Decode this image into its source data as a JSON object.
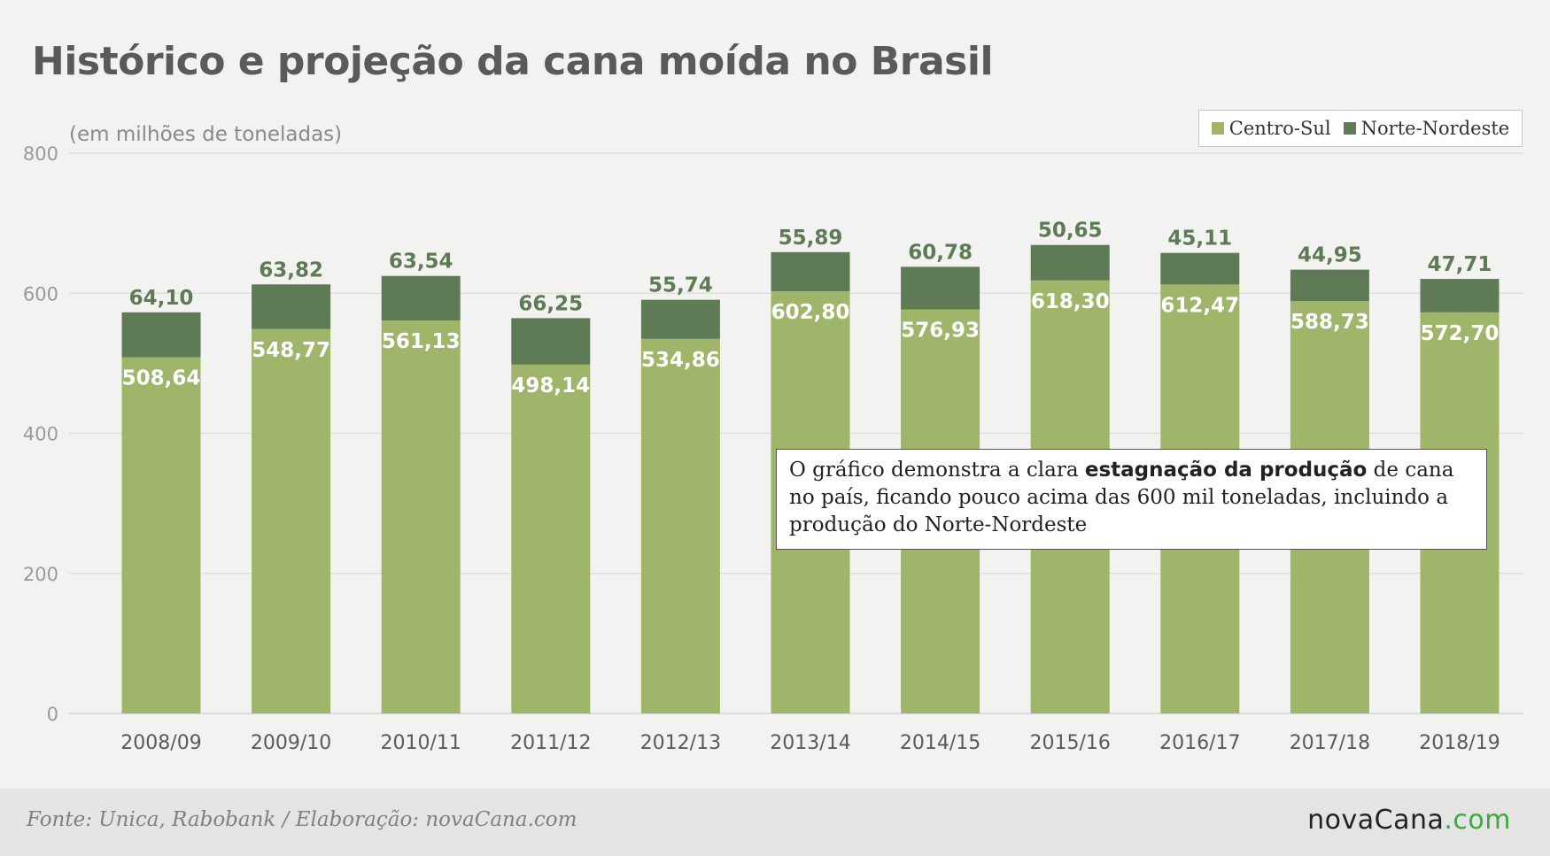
{
  "header": {
    "title": "Histórico e projeção da cana moída no Brasil",
    "subtitle": "(em milhões de toneladas)"
  },
  "legend": {
    "items": [
      {
        "label": "Centro-Sul",
        "color": "#9fb56a"
      },
      {
        "label": "Norte-Nordeste",
        "color": "#5e7b56"
      }
    ]
  },
  "callout": {
    "text_before": "O gráfico demonstra a clara ",
    "text_bold": "estagnação da produção",
    "text_after": " de cana no país, ficando pouco acima das 600 mil toneladas, incluindo a produção do Norte-Nordeste"
  },
  "footer": {
    "source": "Fonte: Unica, Rabobank / Elaboração: novaCana.com",
    "brand_main": "novaCana",
    "brand_suffix": ".com"
  },
  "chart_data": {
    "type": "bar",
    "stacked": true,
    "categories": [
      "2008/09",
      "2009/10",
      "2010/11",
      "2011/12",
      "2012/13",
      "2013/14",
      "2014/15",
      "2015/16",
      "2016/17",
      "2017/18",
      "2018/19"
    ],
    "series": [
      {
        "name": "Centro-Sul",
        "color": "#9fb56a",
        "values": [
          508.64,
          548.77,
          561.13,
          498.14,
          534.86,
          602.8,
          576.93,
          618.3,
          612.47,
          588.73,
          572.7
        ],
        "labels": [
          "508,64",
          "548,77",
          "561,13",
          "498,14",
          "534,86",
          "602,80",
          "576,93",
          "618,30",
          "612,47",
          "588,73",
          "572,70"
        ]
      },
      {
        "name": "Norte-Nordeste",
        "color": "#5e7b56",
        "values": [
          64.1,
          63.82,
          63.54,
          66.25,
          55.74,
          55.89,
          60.78,
          50.65,
          45.11,
          44.95,
          47.71
        ],
        "labels": [
          "64,10",
          "63,82",
          "63,54",
          "66,25",
          "55,74",
          "55,89",
          "60,78",
          "50,65",
          "45,11",
          "44,95",
          "47,71"
        ]
      }
    ],
    "ylim": [
      0,
      800
    ],
    "yticks": [
      0,
      200,
      400,
      600,
      800
    ],
    "grid": true,
    "legend_position": "top-right"
  }
}
